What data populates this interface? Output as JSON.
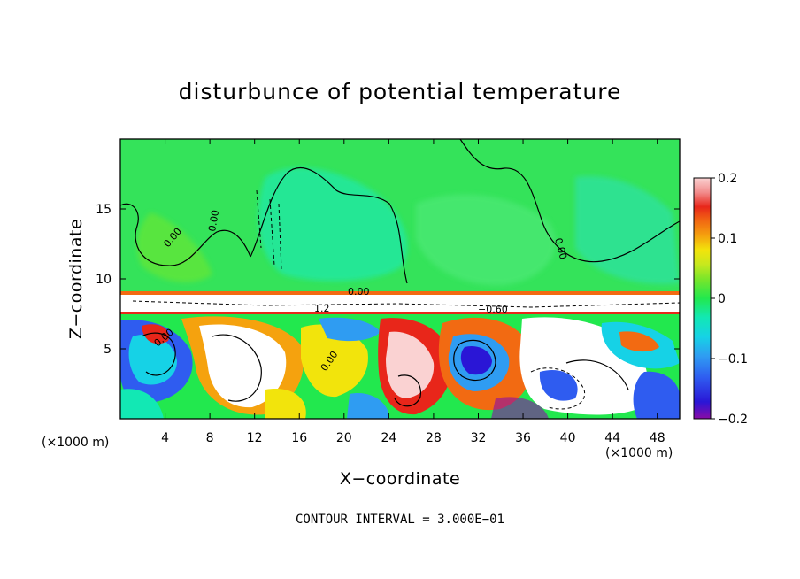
{
  "chart_data": {
    "type": "heatmap",
    "title": "disturbunce of potential temperature",
    "xlabel": "X−coordinate",
    "ylabel": "Z−coordinate",
    "x_unit": "(×1000 m)",
    "y_unit": "(×1000 m)",
    "xlim": [
      0,
      50
    ],
    "ylim": [
      0,
      20
    ],
    "x_ticks": [
      4,
      8,
      12,
      16,
      20,
      24,
      28,
      32,
      36,
      40,
      44,
      48
    ],
    "y_ticks": [
      5,
      10,
      15
    ],
    "colorbar": {
      "min": -0.2,
      "max": 0.2,
      "ticks": [
        0.2,
        0.1,
        0,
        -0.1,
        -0.2
      ],
      "tick_labels": [
        "0.2",
        "0.1",
        "0",
        "−0.1",
        "−0.2"
      ]
    },
    "contour_note": "CONTOUR INTERVAL = 3.000E−01",
    "contour_labels": [
      "0.00",
      "0.00",
      "0.00",
      "0.00",
      "0.00",
      "0.00",
      "1.2",
      "−0.60"
    ]
  },
  "colors": {
    "palette": [
      "#8a0ba6",
      "#2a16d6",
      "#2f5cf0",
      "#2f9cf2",
      "#16d2e6",
      "#12e8b4",
      "#22e84e",
      "#7ae62a",
      "#c6e81e",
      "#f2e40c",
      "#f5a20e",
      "#f26a12",
      "#e8261a",
      "#f28c8c",
      "#fad2d2"
    ],
    "upper_field": "#34e35a",
    "upper_patch": "#22e8a0"
  }
}
